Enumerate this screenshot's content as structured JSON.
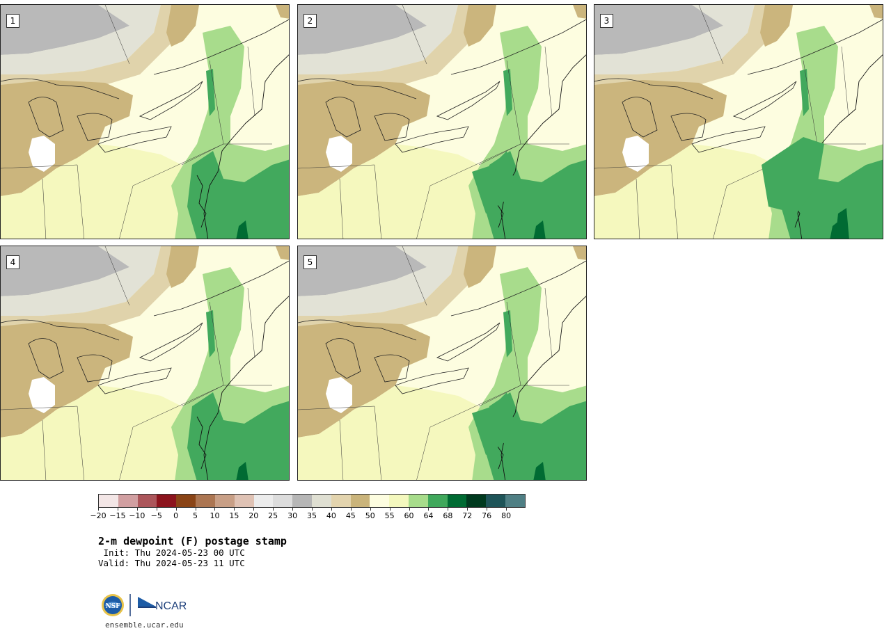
{
  "panels": [
    {
      "label": "1"
    },
    {
      "label": "2"
    },
    {
      "label": "3"
    },
    {
      "label": "4"
    },
    {
      "label": "5"
    }
  ],
  "colors": {
    "cold_gray": "#b9b9b9",
    "light_gray": "#e2e2d6",
    "tan_light": "#e0d3ab",
    "tan": "#cbb57d",
    "cream": "#fdfde0",
    "pale_yellow": "#f5f8be",
    "green_light": "#a8dc8c",
    "green": "#42a95d",
    "green_dark": "#006b33",
    "border_line": "#333333"
  },
  "colorbar": {
    "colors": [
      "#f3e6e6",
      "#d19fa1",
      "#ac565b",
      "#8c141d",
      "#8a4416",
      "#ac7652",
      "#c89f86",
      "#dfc2b4",
      "#ececec",
      "#dcdcdc",
      "#b6b6b6",
      "#dfdfd2",
      "#e3d4ae",
      "#cab47b",
      "#fdfde0",
      "#f4f8be",
      "#a7dc8b",
      "#40a85c",
      "#006b33",
      "#003a1f",
      "#1e5458",
      "#4f7f84"
    ],
    "ticks": [
      "−20",
      "−15",
      "−10",
      "−5",
      "0",
      "5",
      "10",
      "15",
      "20",
      "25",
      "30",
      "35",
      "40",
      "45",
      "50",
      "55",
      "60",
      "64",
      "68",
      "72",
      "76",
      "80"
    ]
  },
  "title": "2-m dewpoint (F) postage stamp",
  "init_line": " Init: Thu 2024-05-23 00 UTC",
  "valid_line": "Valid: Thu 2024-05-23 11 UTC",
  "logos": {
    "nsf": "NSF",
    "ncar": "NCAR"
  },
  "footer_url": "ensemble.ucar.edu"
}
